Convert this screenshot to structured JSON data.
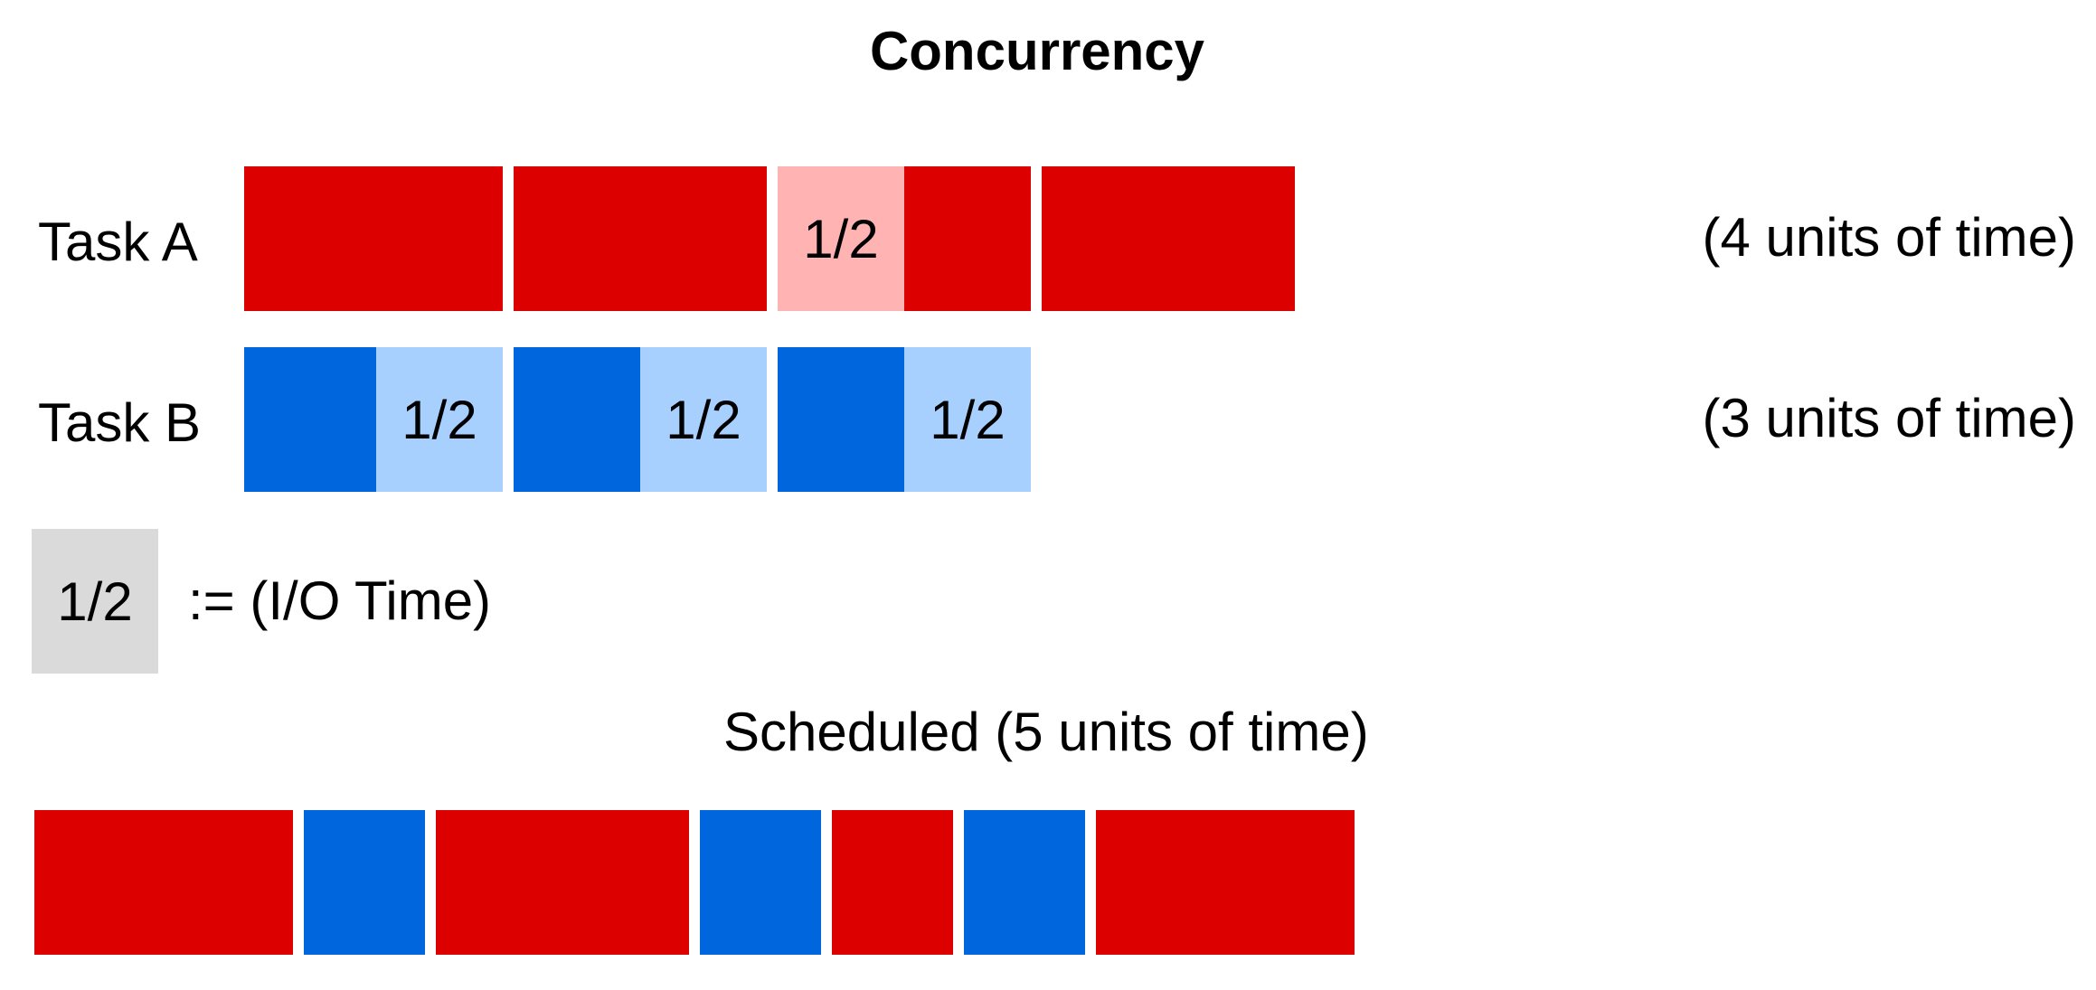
{
  "title": "Concurrency",
  "colors": {
    "task_a_cpu": "#DC0000",
    "task_a_io": "#FFB3B3",
    "task_b_cpu": "#0066DD",
    "task_b_io": "#A8D0FF",
    "io_legend": "#DADADA"
  },
  "task_a": {
    "label": "Task A",
    "units": "(4 units of time)",
    "segments": [
      {
        "kind": "cpu",
        "duration": 1,
        "text": ""
      },
      {
        "kind": "cpu",
        "duration": 1,
        "text": ""
      },
      {
        "kind": "io",
        "duration": 0.5,
        "text": "1/2"
      },
      {
        "kind": "cpu",
        "duration": 0.5,
        "text": ""
      },
      {
        "kind": "cpu",
        "duration": 1,
        "text": ""
      }
    ]
  },
  "task_b": {
    "label": "Task B",
    "units": "(3 units of time)",
    "segments": [
      {
        "kind": "cpu",
        "duration": 0.5,
        "text": ""
      },
      {
        "kind": "io",
        "duration": 0.5,
        "text": "1/2"
      },
      {
        "kind": "cpu",
        "duration": 0.5,
        "text": ""
      },
      {
        "kind": "io",
        "duration": 0.5,
        "text": "1/2"
      },
      {
        "kind": "cpu",
        "duration": 0.5,
        "text": ""
      },
      {
        "kind": "io",
        "duration": 0.5,
        "text": "1/2"
      }
    ]
  },
  "legend": {
    "swatch_text": "1/2",
    "text": ":= (I/O Time)"
  },
  "scheduled": {
    "label": "Scheduled (5 units of time)",
    "segments": [
      {
        "task": "A",
        "duration": 1
      },
      {
        "task": "B",
        "duration": 0.5
      },
      {
        "task": "A",
        "duration": 1
      },
      {
        "task": "B",
        "duration": 0.5
      },
      {
        "task": "A",
        "duration": 0.5
      },
      {
        "task": "B",
        "duration": 0.5
      },
      {
        "task": "A",
        "duration": 1
      }
    ]
  }
}
